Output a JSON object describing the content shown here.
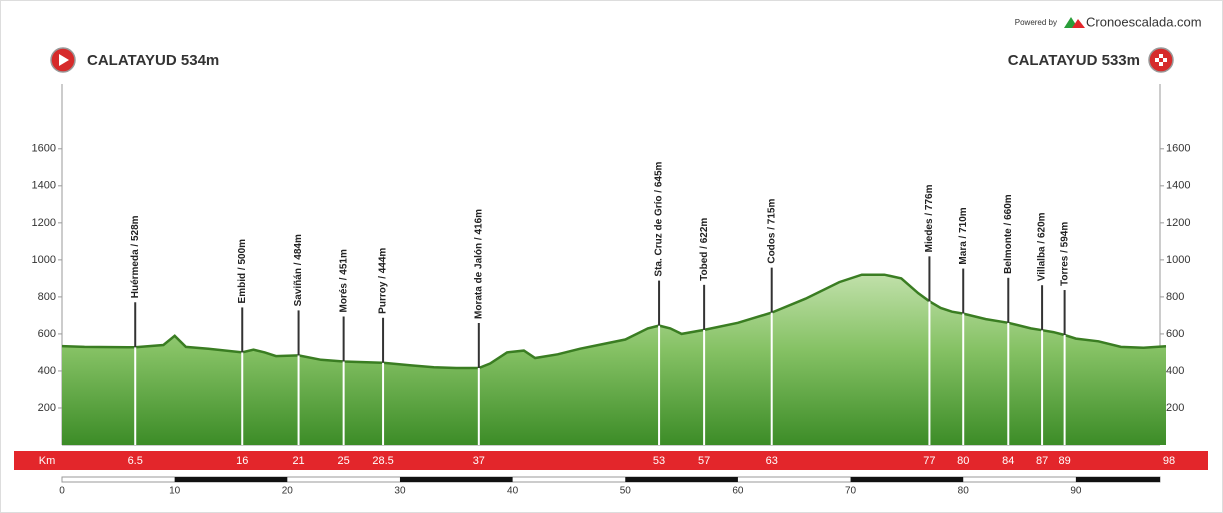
{
  "chart_data": {
    "type": "elevation-profile",
    "powered_by": "Powered by",
    "brand": "Cronoescalada.com",
    "start_label": "CALATAYUD 534m",
    "finish_label": "CALATAYUD 533m",
    "km_label": "Km",
    "finish_km": 98,
    "color": "#3a7d22",
    "profile": {
      "km": [
        0,
        2,
        6.5,
        9,
        10,
        11,
        13,
        16,
        17,
        18,
        19,
        21,
        23,
        25,
        28.5,
        31,
        33,
        35,
        37,
        38,
        39.5,
        41,
        42,
        44,
        46,
        48,
        50,
        52,
        53,
        54,
        55,
        57,
        60,
        63,
        66,
        69,
        71,
        73,
        74.5,
        76,
        77,
        78,
        79,
        80,
        82,
        84,
        86,
        87,
        88,
        89,
        90,
        92,
        94,
        96,
        98
      ],
      "elevation": [
        534,
        530,
        528,
        540,
        590,
        530,
        520,
        500,
        515,
        500,
        480,
        484,
        460,
        451,
        444,
        430,
        420,
        416,
        416,
        440,
        500,
        510,
        470,
        490,
        520,
        545,
        570,
        630,
        645,
        630,
        600,
        622,
        660,
        715,
        790,
        880,
        920,
        920,
        900,
        820,
        776,
        740,
        720,
        710,
        680,
        660,
        630,
        620,
        610,
        594,
        575,
        560,
        530,
        525,
        533
      ]
    },
    "waypoints": [
      {
        "name": "Huérmeda / 528m",
        "km": 6.5
      },
      {
        "name": "Embid / 500m",
        "km": 16
      },
      {
        "name": "Saviñán / 484m",
        "km": 21
      },
      {
        "name": "Morés / 451m",
        "km": 25
      },
      {
        "name": "Purroy / 444m",
        "km": 28.5
      },
      {
        "name": "Morata de Jalón / 416m",
        "km": 37
      },
      {
        "name": "Sta. Cruz de Grío / 645m",
        "km": 53
      },
      {
        "name": "Tobed / 622m",
        "km": 57
      },
      {
        "name": "Codos / 715m",
        "km": 63
      },
      {
        "name": "Miedes / 776m",
        "km": 77
      },
      {
        "name": "Mara / 710m",
        "km": 80
      },
      {
        "name": "Belmonte / 660m",
        "km": 84
      },
      {
        "name": "Villalba / 620m",
        "km": 87
      },
      {
        "name": "Torres / 594m",
        "km": 89
      }
    ],
    "xlim": [
      0,
      98
    ],
    "xticks": [
      0,
      10,
      20,
      30,
      40,
      50,
      60,
      70,
      80,
      90
    ],
    "ylim": [
      0,
      1950
    ],
    "yticks": [
      200,
      400,
      600,
      800,
      1000,
      1200,
      1400,
      1600
    ]
  }
}
